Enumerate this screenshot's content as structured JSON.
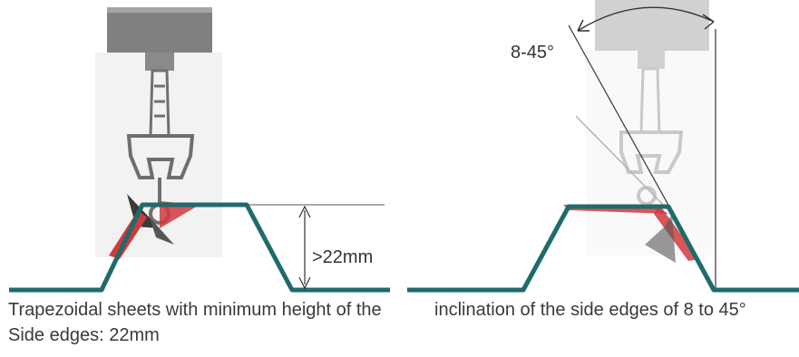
{
  "left_panel": {
    "dimension_label": ">22mm",
    "caption": "Trapezoidal sheets with minimum height of the  Side edges: 22mm"
  },
  "right_panel": {
    "angle_label": "8-45°",
    "caption": "inclination of the side edges of 8 to 45°"
  },
  "colors": {
    "sheet_profile": "#1f6b6b",
    "seal_red": "#d0393e",
    "mount_grey": "#7d7d7d",
    "mount_light": "#bdbdbd",
    "dimension_line": "#333333"
  },
  "icons": [
    "solar-mount-clamp-icon",
    "trapezoidal-sheet-profile",
    "dimension-arrow",
    "angle-arc-arrow"
  ]
}
